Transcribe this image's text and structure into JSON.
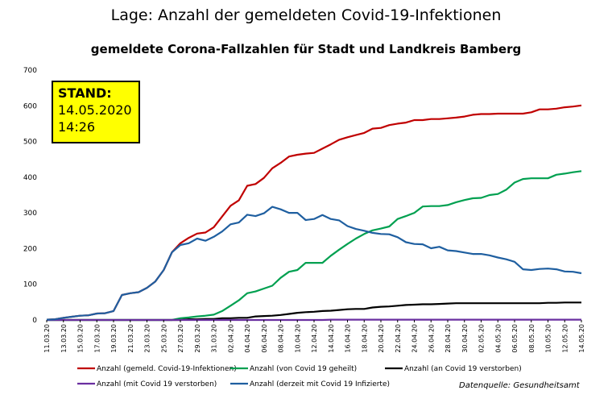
{
  "page": {
    "title": "Lage: Anzahl der gemeldeten Covid-19-Infektionen",
    "stand_label": "STAND:",
    "stand_date": "14.05.2020",
    "stand_time": "14:26",
    "source": "Datenquelle: Gesundheitsamt"
  },
  "chart_data": {
    "type": "line",
    "title": "gemeldete Corona-Fallzahlen für Stadt und Landkreis Bamberg",
    "xlabel": "",
    "ylabel": "",
    "ylim": [
      0,
      700
    ],
    "yticks": [
      0,
      100,
      200,
      300,
      400,
      500,
      600,
      700
    ],
    "grid": false,
    "legend_position": "bottom",
    "x": [
      "11.03.20",
      "12.03.20",
      "13.03.20",
      "14.03.20",
      "15.03.20",
      "16.03.20",
      "17.03.20",
      "18.03.20",
      "19.03.20",
      "20.03.20",
      "21.03.20",
      "22.03.20",
      "23.03.20",
      "24.03.20",
      "25.03.20",
      "26.03.20",
      "27.03.20",
      "28.03.20",
      "29.03.20",
      "30.03.20",
      "31.03.20",
      "01.04.20",
      "02.04.20",
      "03.04.20",
      "04.04.20",
      "05.04.20",
      "06.04.20",
      "07.04.20",
      "08.04.20",
      "09.04.20",
      "10.04.20",
      "11.04.20",
      "12.04.20",
      "13.04.20",
      "14.04.20",
      "15.04.20",
      "16.04.20",
      "17.04.20",
      "18.04.20",
      "19.04.20",
      "20.04.20",
      "21.04.20",
      "22.04.20",
      "23.04.20",
      "24.04.20",
      "25.04.20",
      "26.04.20",
      "27.04.20",
      "28.04.20",
      "29.04.20",
      "30.04.20",
      "01.05.20",
      "02.05.20",
      "03.05.20",
      "04.05.20",
      "05.05.20",
      "06.05.20",
      "07.05.20",
      "08.05.20",
      "09.05.20",
      "10.05.20",
      "11.05.20",
      "12.05.20",
      "13.05.20",
      "14.05.20"
    ],
    "series": [
      {
        "name": "Anzahl (gemeld. Covid-19-Infektionen)",
        "color": "#c00000",
        "values": [
          1,
          2,
          6,
          9,
          12,
          13,
          18,
          19,
          25,
          70,
          75,
          78,
          90,
          108,
          140,
          190,
          215,
          230,
          242,
          245,
          260,
          290,
          320,
          335,
          376,
          381,
          398,
          425,
          440,
          458,
          463,
          466,
          468,
          480,
          492,
          505,
          512,
          518,
          524,
          536,
          538,
          546,
          550,
          553,
          560,
          560,
          563,
          563,
          565,
          567,
          570,
          575,
          577,
          577,
          578,
          578,
          578,
          578,
          582,
          590,
          590,
          592,
          596,
          598,
          601
        ]
      },
      {
        "name": "Anzahl (von Covid 19 geheilt)",
        "color": "#00a050",
        "values": [
          0,
          0,
          0,
          0,
          0,
          0,
          0,
          0,
          0,
          0,
          0,
          0,
          0,
          0,
          0,
          0,
          5,
          7,
          10,
          12,
          15,
          25,
          40,
          55,
          75,
          80,
          88,
          96,
          118,
          135,
          140,
          160,
          160,
          160,
          180,
          197,
          213,
          228,
          241,
          251,
          256,
          262,
          283,
          291,
          300,
          318,
          319,
          319,
          322,
          330,
          336,
          341,
          342,
          350,
          353,
          365,
          385,
          395,
          397,
          397,
          397,
          407,
          410,
          414,
          417
        ]
      },
      {
        "name": "Anzahl (an Covid 19 verstorben)",
        "color": "#000000",
        "values": [
          0,
          0,
          0,
          0,
          0,
          0,
          0,
          0,
          0,
          0,
          0,
          0,
          0,
          0,
          0,
          0,
          0,
          2,
          2,
          3,
          3,
          5,
          5,
          6,
          6,
          10,
          11,
          12,
          14,
          17,
          20,
          22,
          23,
          25,
          26,
          28,
          30,
          31,
          31,
          35,
          37,
          38,
          40,
          42,
          43,
          44,
          44,
          45,
          46,
          47,
          47,
          47,
          47,
          47,
          47,
          47,
          47,
          47,
          47,
          47,
          48,
          48,
          49,
          49,
          49
        ]
      },
      {
        "name": "Anzahl (mit Covid 19 verstorben)",
        "color": "#6a2fa0",
        "values": [
          0,
          0,
          0,
          0,
          0,
          0,
          0,
          0,
          0,
          0,
          0,
          0,
          0,
          0,
          0,
          0,
          0,
          0,
          0,
          0,
          0,
          0,
          0,
          0,
          0,
          0,
          0,
          0,
          0,
          0,
          0,
          0,
          0,
          0,
          1,
          1,
          1,
          1,
          1,
          1,
          1,
          1,
          1,
          1,
          1,
          1,
          1,
          1,
          1,
          1,
          1,
          1,
          1,
          1,
          1,
          1,
          1,
          1,
          1,
          1,
          1,
          1,
          1,
          1,
          1
        ]
      },
      {
        "name": "Anzahl (derzeit mit Covid 19 Infizierte)",
        "color": "#1f5fa0",
        "values": [
          1,
          2,
          6,
          9,
          12,
          13,
          18,
          19,
          25,
          70,
          75,
          78,
          90,
          108,
          140,
          190,
          210,
          215,
          228,
          222,
          233,
          248,
          268,
          273,
          295,
          291,
          299,
          317,
          310,
          300,
          300,
          280,
          283,
          294,
          283,
          279,
          263,
          255,
          250,
          244,
          241,
          240,
          232,
          218,
          213,
          212,
          201,
          205,
          195,
          193,
          189,
          185,
          185,
          181,
          175,
          170,
          163,
          142,
          140,
          143,
          144,
          142,
          136,
          135,
          131
        ]
      }
    ]
  }
}
